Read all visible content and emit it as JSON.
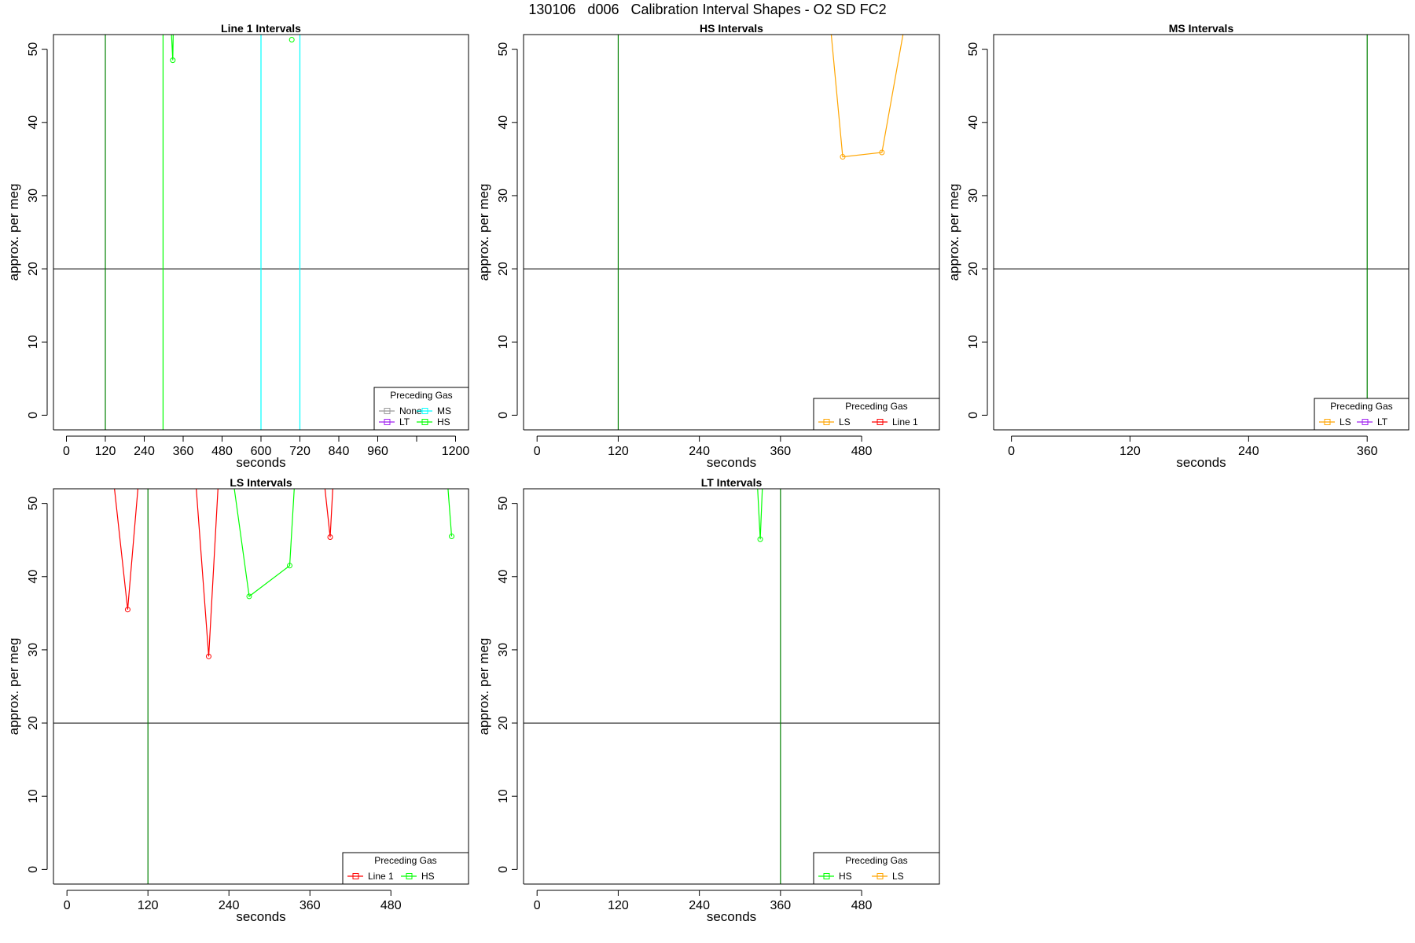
{
  "figure_title": "130106   d006   Calibration Interval Shapes - O2 SD FC2",
  "chart_data": [
    {
      "type": "line",
      "title": "Line 1 Intervals",
      "xlabel": "seconds",
      "ylabel": "approx. per meg",
      "xlim": [
        -40,
        1240
      ],
      "ylim": [
        -2,
        52
      ],
      "xticks": [
        0,
        120,
        240,
        360,
        480,
        600,
        720,
        840,
        960,
        1080,
        1200
      ],
      "xticklabels": [
        "0",
        "120",
        "240",
        "360",
        "480",
        "600",
        "720",
        "840",
        "960",
        "",
        "1200"
      ],
      "yticks": [
        0,
        10,
        20,
        30,
        40,
        50
      ],
      "hline": 20,
      "vlines": [
        {
          "x": 120,
          "color": "#008000"
        },
        {
          "x": 298,
          "color": "#00ff00"
        },
        {
          "x": 600,
          "color": "#00ffff"
        },
        {
          "x": 720,
          "color": "#00ffff"
        }
      ],
      "series": [
        {
          "name": "HS",
          "color": "#00ff00",
          "segments": [
            [
              [
                315,
                60
              ],
              [
                328,
                48.5
              ],
              [
                332,
                60
              ]
            ],
            [
              [
                695,
                51.3
              ]
            ]
          ]
        }
      ],
      "legend": {
        "title": "Preceding Gas",
        "position": "bottom-right",
        "entries": [
          {
            "label": "None",
            "color": "#999999"
          },
          {
            "label": "MS",
            "color": "#00ffff"
          },
          {
            "label": "LT",
            "color": "#a020f0"
          },
          {
            "label": "HS",
            "color": "#00ff00"
          }
        ]
      }
    },
    {
      "type": "line",
      "title": "HS Intervals",
      "xlabel": "seconds",
      "ylabel": "approx. per meg",
      "xlim": [
        -20,
        595
      ],
      "ylim": [
        -2,
        52
      ],
      "xticks": [
        0,
        120,
        240,
        360,
        480
      ],
      "xticklabels": [
        "0",
        "120",
        "240",
        "360",
        "480"
      ],
      "yticks": [
        0,
        10,
        20,
        30,
        40,
        50
      ],
      "hline": 20,
      "vlines": [
        {
          "x": 120,
          "color": "#008000"
        }
      ],
      "series": [
        {
          "name": "LS",
          "color": "#ffa500",
          "segments": [
            [
              [
                433,
                54
              ],
              [
                452,
                35.3
              ],
              [
                510,
                35.9
              ],
              [
                545,
                54
              ]
            ]
          ]
        }
      ],
      "legend": {
        "title": "Preceding Gas",
        "position": "bottom-right",
        "entries": [
          {
            "label": "LS",
            "color": "#ffa500"
          },
          {
            "label": "Line 1",
            "color": "#ff0000"
          }
        ]
      }
    },
    {
      "type": "line",
      "title": "MS Intervals",
      "xlabel": "seconds",
      "ylabel": "approx. per meg",
      "xlim": [
        -18,
        402
      ],
      "ylim": [
        -2,
        52
      ],
      "xticks": [
        0,
        120,
        240,
        360
      ],
      "xticklabels": [
        "0",
        "120",
        "240",
        "360"
      ],
      "yticks": [
        0,
        10,
        20,
        30,
        40,
        50
      ],
      "hline": 20,
      "vlines": [
        {
          "x": 360,
          "color": "#008000"
        }
      ],
      "series": [],
      "legend": {
        "title": "Preceding Gas",
        "position": "bottom-right",
        "entries": [
          {
            "label": "LS",
            "color": "#ffa500"
          },
          {
            "label": "LT",
            "color": "#a020f0"
          }
        ]
      }
    },
    {
      "type": "line",
      "title": "LS Intervals",
      "xlabel": "seconds",
      "ylabel": "approx. per meg",
      "xlim": [
        -20,
        595
      ],
      "ylim": [
        -2,
        52
      ],
      "xticks": [
        0,
        120,
        240,
        360,
        480
      ],
      "xticklabels": [
        "0",
        "120",
        "240",
        "360",
        "480"
      ],
      "yticks": [
        0,
        10,
        20,
        30,
        40,
        50
      ],
      "hline": 20,
      "vlines": [
        {
          "x": 120,
          "color": "#008000"
        }
      ],
      "series": [
        {
          "name": "Line 1",
          "color": "#ff0000",
          "segments": [
            [
              [
                68,
                54
              ],
              [
                90,
                35.5
              ],
              [
                107,
                54
              ]
            ],
            [
              [
                190,
                54
              ],
              [
                210,
                29.1
              ],
              [
                225,
                54
              ]
            ],
            [
              [
                380,
                54
              ],
              [
                390,
                45.4
              ],
              [
                395,
                54
              ]
            ]
          ]
        },
        {
          "name": "HS",
          "color": "#00ff00",
          "segments": [
            [
              [
                245,
                54
              ],
              [
                270,
                37.3
              ],
              [
                330,
                41.5
              ],
              [
                338,
                54
              ]
            ],
            [
              [
                563,
                54
              ],
              [
                570,
                45.5
              ]
            ]
          ]
        }
      ],
      "legend": {
        "title": "Preceding Gas",
        "position": "bottom-right",
        "entries": [
          {
            "label": "Line 1",
            "color": "#ff0000"
          },
          {
            "label": "HS",
            "color": "#00ff00"
          }
        ]
      }
    },
    {
      "type": "line",
      "title": "LT Intervals",
      "xlabel": "seconds",
      "ylabel": "approx. per meg",
      "xlim": [
        -20,
        595
      ],
      "ylim": [
        -2,
        52
      ],
      "xticks": [
        0,
        120,
        240,
        360,
        480
      ],
      "xticklabels": [
        "0",
        "120",
        "240",
        "360",
        "480"
      ],
      "yticks": [
        0,
        10,
        20,
        30,
        40,
        50
      ],
      "hline": 20,
      "vlines": [
        {
          "x": 360,
          "color": "#008000"
        }
      ],
      "series": [
        {
          "name": "HS",
          "color": "#00ff00",
          "segments": [
            [
              [
                325,
                54
              ],
              [
                330,
                45.1
              ],
              [
                334,
                54
              ]
            ]
          ]
        }
      ],
      "legend": {
        "title": "Preceding Gas",
        "position": "bottom-right",
        "entries": [
          {
            "label": "HS",
            "color": "#00ff00"
          },
          {
            "label": "LS",
            "color": "#ffa500"
          }
        ]
      }
    }
  ]
}
